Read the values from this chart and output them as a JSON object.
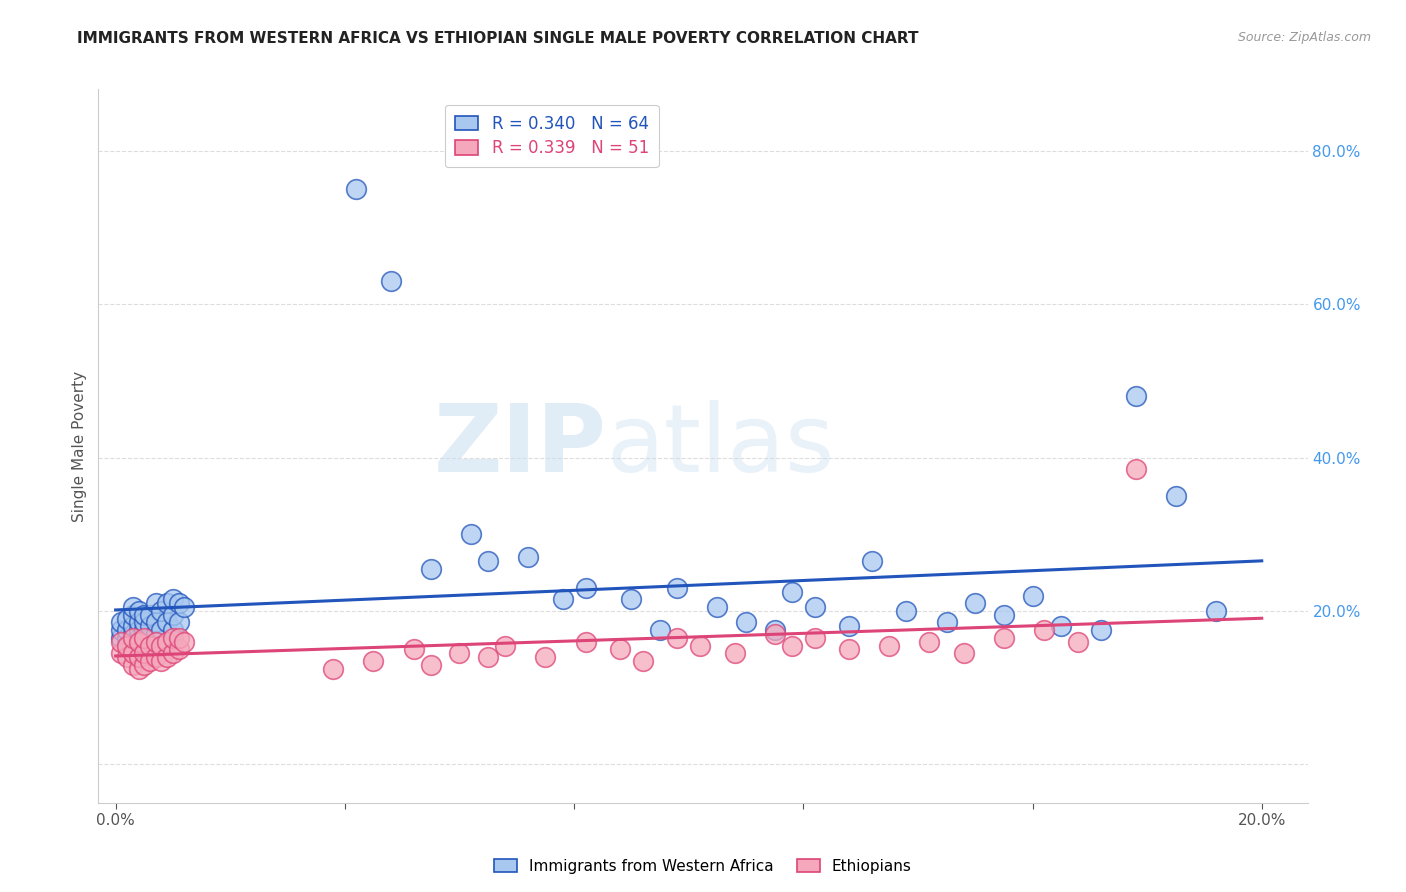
{
  "title": "IMMIGRANTS FROM WESTERN AFRICA VS ETHIOPIAN SINGLE MALE POVERTY CORRELATION CHART",
  "source": "Source: ZipAtlas.com",
  "ylabel": "Single Male Poverty",
  "blue_label": "Immigrants from Western Africa",
  "pink_label": "Ethiopians",
  "blue_R": "0.340",
  "blue_N": "64",
  "pink_R": "0.339",
  "pink_N": "51",
  "watermark_zip": "ZIP",
  "watermark_atlas": "atlas",
  "blue_scatter_x": [
    0.001,
    0.001,
    0.001,
    0.002,
    0.002,
    0.002,
    0.002,
    0.003,
    0.003,
    0.003,
    0.003,
    0.003,
    0.004,
    0.004,
    0.004,
    0.004,
    0.005,
    0.005,
    0.005,
    0.005,
    0.006,
    0.006,
    0.006,
    0.007,
    0.007,
    0.007,
    0.008,
    0.008,
    0.009,
    0.009,
    0.01,
    0.01,
    0.01,
    0.011,
    0.011,
    0.012,
    0.042,
    0.048,
    0.055,
    0.062,
    0.065,
    0.072,
    0.078,
    0.082,
    0.09,
    0.095,
    0.098,
    0.105,
    0.11,
    0.115,
    0.118,
    0.122,
    0.128,
    0.132,
    0.138,
    0.145,
    0.15,
    0.155,
    0.16,
    0.165,
    0.172,
    0.178,
    0.185,
    0.192
  ],
  "blue_scatter_y": [
    0.165,
    0.175,
    0.185,
    0.155,
    0.165,
    0.175,
    0.19,
    0.16,
    0.17,
    0.18,
    0.195,
    0.205,
    0.165,
    0.175,
    0.185,
    0.2,
    0.16,
    0.175,
    0.185,
    0.195,
    0.165,
    0.18,
    0.195,
    0.17,
    0.185,
    0.21,
    0.175,
    0.2,
    0.185,
    0.21,
    0.175,
    0.195,
    0.215,
    0.185,
    0.21,
    0.205,
    0.75,
    0.63,
    0.255,
    0.3,
    0.265,
    0.27,
    0.215,
    0.23,
    0.215,
    0.175,
    0.23,
    0.205,
    0.185,
    0.175,
    0.225,
    0.205,
    0.18,
    0.265,
    0.2,
    0.185,
    0.21,
    0.195,
    0.22,
    0.18,
    0.175,
    0.48,
    0.35,
    0.2
  ],
  "pink_scatter_x": [
    0.001,
    0.001,
    0.002,
    0.002,
    0.003,
    0.003,
    0.003,
    0.004,
    0.004,
    0.004,
    0.005,
    0.005,
    0.005,
    0.006,
    0.006,
    0.007,
    0.007,
    0.008,
    0.008,
    0.009,
    0.009,
    0.01,
    0.01,
    0.011,
    0.011,
    0.012,
    0.038,
    0.045,
    0.052,
    0.055,
    0.06,
    0.065,
    0.068,
    0.075,
    0.082,
    0.088,
    0.092,
    0.098,
    0.102,
    0.108,
    0.115,
    0.118,
    0.122,
    0.128,
    0.135,
    0.142,
    0.148,
    0.155,
    0.162,
    0.168,
    0.178
  ],
  "pink_scatter_y": [
    0.145,
    0.16,
    0.14,
    0.155,
    0.13,
    0.145,
    0.165,
    0.125,
    0.14,
    0.16,
    0.13,
    0.145,
    0.165,
    0.135,
    0.155,
    0.14,
    0.16,
    0.135,
    0.155,
    0.14,
    0.16,
    0.145,
    0.165,
    0.15,
    0.165,
    0.16,
    0.125,
    0.135,
    0.15,
    0.13,
    0.145,
    0.14,
    0.155,
    0.14,
    0.16,
    0.15,
    0.135,
    0.165,
    0.155,
    0.145,
    0.17,
    0.155,
    0.165,
    0.15,
    0.155,
    0.16,
    0.145,
    0.165,
    0.175,
    0.16,
    0.385
  ],
  "blue_color": "#A8C8F0",
  "pink_color": "#F5A8BC",
  "blue_line_color": "#2255BB",
  "pink_line_color": "#DD4477",
  "grid_color": "#dddddd",
  "xlim_min": -0.003,
  "xlim_max": 0.208,
  "ylim_min": -0.05,
  "ylim_max": 0.88,
  "xticks": [
    0.0,
    0.04,
    0.08,
    0.12,
    0.16,
    0.2
  ],
  "xtick_labels": [
    "0.0%",
    "",
    "",
    "",
    "",
    "20.0%"
  ],
  "right_yticks": [
    0.0,
    0.2,
    0.4,
    0.6,
    0.8
  ],
  "right_yticklabels": [
    "",
    "20.0%",
    "40.0%",
    "60.0%",
    "80.0%"
  ],
  "right_tick_color": "#4499EE",
  "title_fontsize": 11,
  "axis_fontsize": 11,
  "source_fontsize": 9
}
